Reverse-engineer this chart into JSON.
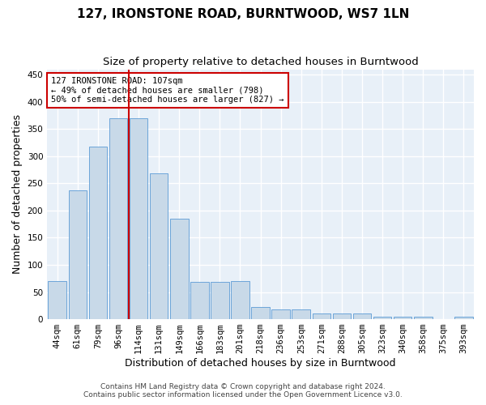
{
  "title": "127, IRONSTONE ROAD, BURNTWOOD, WS7 1LN",
  "subtitle": "Size of property relative to detached houses in Burntwood",
  "xlabel": "Distribution of detached houses by size in Burntwood",
  "ylabel": "Number of detached properties",
  "categories": [
    "44sqm",
    "61sqm",
    "79sqm",
    "96sqm",
    "114sqm",
    "131sqm",
    "149sqm",
    "166sqm",
    "183sqm",
    "201sqm",
    "218sqm",
    "236sqm",
    "253sqm",
    "271sqm",
    "288sqm",
    "305sqm",
    "323sqm",
    "340sqm",
    "358sqm",
    "375sqm",
    "393sqm"
  ],
  "values": [
    70,
    237,
    317,
    370,
    370,
    268,
    185,
    68,
    68,
    70,
    22,
    18,
    18,
    10,
    10,
    10,
    5,
    5,
    5,
    0,
    5
  ],
  "bar_color": "#c8d9e8",
  "bar_edge_color": "#5b9bd5",
  "vline_color": "#cc0000",
  "vline_x_index": 3.5,
  "annotation_text": "127 IRONSTONE ROAD: 107sqm\n← 49% of detached houses are smaller (798)\n50% of semi-detached houses are larger (827) →",
  "annotation_box_color": "#ffffff",
  "annotation_box_edge": "#cc0000",
  "ylim": [
    0,
    460
  ],
  "yticks": [
    0,
    50,
    100,
    150,
    200,
    250,
    300,
    350,
    400,
    450
  ],
  "footer_line1": "Contains HM Land Registry data © Crown copyright and database right 2024.",
  "footer_line2": "Contains public sector information licensed under the Open Government Licence v3.0.",
  "bg_color": "#ffffff",
  "plot_bg_color": "#e8f0f8",
  "grid_color": "#ffffff",
  "title_fontsize": 11,
  "subtitle_fontsize": 9.5,
  "axis_label_fontsize": 9,
  "tick_fontsize": 7.5,
  "footer_fontsize": 6.5
}
